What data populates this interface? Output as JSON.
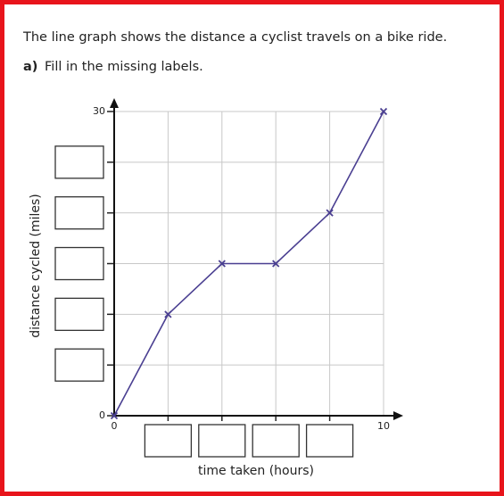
{
  "header": {
    "intro": "The line graph shows the distance a cyclist travels on a bike ride.",
    "question_number": "a)",
    "question": "Fill in the missing labels."
  },
  "chart_data": {
    "type": "line",
    "x": [
      0,
      2,
      4,
      6,
      8,
      10
    ],
    "series": [
      {
        "color": "#4a3f91",
        "values": [
          0,
          10,
          15,
          15,
          20,
          30
        ]
      }
    ],
    "xlabel": "time taken (hours)",
    "ylabel": "distance cycled (miles)",
    "xlim": [
      0,
      10
    ],
    "ylim": [
      0,
      30
    ],
    "xticks": [
      0,
      10
    ],
    "yticks": [
      0,
      30
    ],
    "xgrid": [
      2,
      4,
      6,
      8
    ],
    "ygrid": [
      5,
      10,
      15,
      20,
      25
    ],
    "grid": true
  }
}
